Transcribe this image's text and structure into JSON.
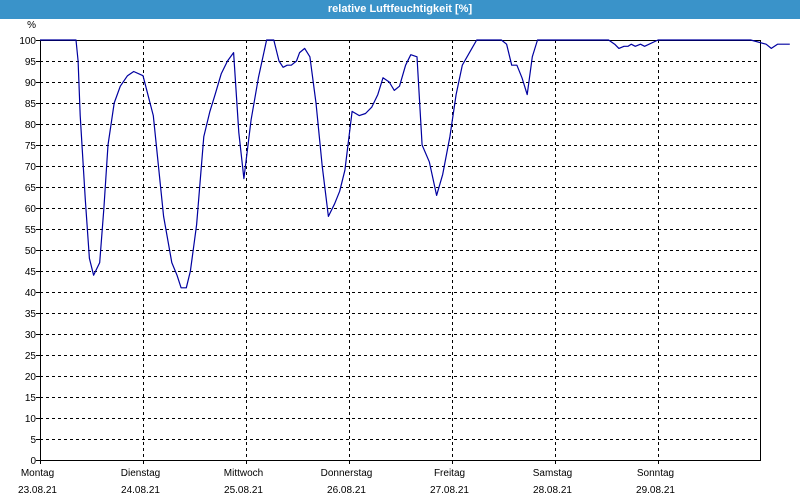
{
  "header": {
    "title": "relative Luftfeuchtigkeit [%]"
  },
  "chart_data": {
    "type": "line",
    "title": "relative Luftfeuchtigkeit [%]",
    "ylabel": "%",
    "xlabel": "",
    "ylim": [
      0,
      100
    ],
    "y_ticks": [
      0,
      5,
      10,
      15,
      20,
      25,
      30,
      35,
      40,
      45,
      50,
      55,
      60,
      65,
      70,
      75,
      80,
      85,
      90,
      95,
      100
    ],
    "xlim": [
      0,
      7
    ],
    "x_ticks": [
      {
        "day": "Montag",
        "date": "23.08.21",
        "x": 0
      },
      {
        "day": "Dienstag",
        "date": "24.08.21",
        "x": 1
      },
      {
        "day": "Mittwoch",
        "date": "25.08.21",
        "x": 2
      },
      {
        "day": "Donnerstag",
        "date": "26.08.21",
        "x": 3
      },
      {
        "day": "Freitag",
        "date": "27.08.21",
        "x": 4
      },
      {
        "day": "Samstag",
        "date": "28.08.21",
        "x": 5
      },
      {
        "day": "Sonntag",
        "date": "29.08.21",
        "x": 6
      }
    ],
    "grid": true,
    "line_color": "#0000a0",
    "series": [
      {
        "name": "",
        "x": [
          0.0,
          0.35,
          0.37,
          0.39,
          0.44,
          0.48,
          0.52,
          0.58,
          0.62,
          0.66,
          0.72,
          0.78,
          0.85,
          0.91,
          1.0,
          1.1,
          1.2,
          1.28,
          1.33,
          1.37,
          1.42,
          1.46,
          1.52,
          1.59,
          1.65,
          1.7,
          1.76,
          1.82,
          1.88,
          1.93,
          1.98,
          2.05,
          2.12,
          2.2,
          2.27,
          2.32,
          2.36,
          2.4,
          2.44,
          2.49,
          2.52,
          2.57,
          2.62,
          2.68,
          2.74,
          2.8,
          2.86,
          2.91,
          2.96,
          3.03,
          3.1,
          3.16,
          3.22,
          3.28,
          3.33,
          3.39,
          3.44,
          3.49,
          3.55,
          3.6,
          3.66,
          3.71,
          3.78,
          3.85,
          3.91,
          3.98,
          4.04,
          4.1,
          4.17,
          4.24,
          4.3,
          4.37,
          4.43,
          4.48,
          4.53,
          4.58,
          4.63,
          4.68,
          4.73,
          4.78,
          4.83,
          4.9,
          4.97,
          5.03,
          5.1,
          5.2,
          5.3,
          5.42,
          5.52,
          5.58,
          5.62,
          5.67,
          5.71,
          5.74,
          5.78,
          5.83,
          5.87,
          6.0,
          6.3,
          6.6,
          6.9,
          7.05,
          7.1,
          7.16,
          7.22,
          7.28
        ],
        "values": [
          100,
          100,
          95,
          82,
          62,
          48,
          44,
          47,
          60,
          75,
          85,
          89,
          91.5,
          92.5,
          91.5,
          82,
          58,
          47,
          44,
          41,
          41,
          45,
          56,
          77,
          83,
          87,
          92,
          95,
          97,
          78,
          67,
          81,
          91,
          100,
          100,
          95,
          93.5,
          94,
          94,
          95,
          97,
          98,
          96,
          85,
          70,
          58,
          61,
          64,
          69,
          83,
          82,
          82.5,
          84,
          87,
          91,
          90,
          88,
          89,
          94,
          96.5,
          96,
          75,
          71,
          63,
          68,
          77,
          87,
          94,
          97,
          100,
          100,
          100,
          100,
          100,
          99,
          94,
          94,
          91,
          87,
          96,
          100,
          100,
          100,
          100,
          100,
          100,
          100,
          100,
          100,
          99,
          98,
          98.5,
          98.5,
          99,
          98.5,
          99,
          98.5,
          100,
          100,
          100,
          100,
          99,
          98,
          99,
          99,
          99
        ]
      }
    ]
  }
}
